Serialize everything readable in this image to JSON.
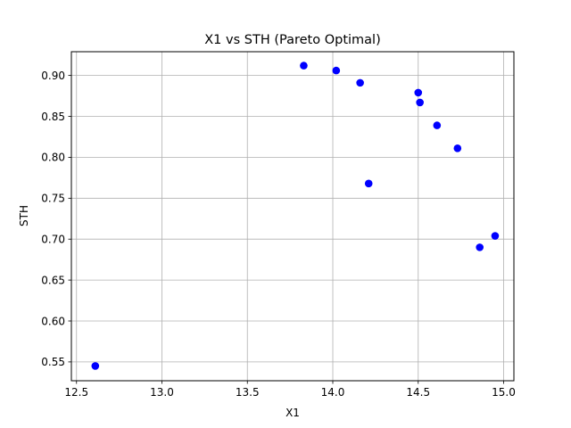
{
  "chart_data": {
    "type": "scatter",
    "title": "X1 vs STH (Pareto Optimal)",
    "xlabel": "X1",
    "ylabel": "STH",
    "xlim": [
      12.47,
      15.06
    ],
    "ylim": [
      0.527,
      0.929
    ],
    "x_ticks": [
      "12.5",
      "13.0",
      "13.5",
      "14.0",
      "14.5",
      "15.0"
    ],
    "y_ticks": [
      "0.55",
      "0.60",
      "0.65",
      "0.70",
      "0.75",
      "0.80",
      "0.85",
      "0.90"
    ],
    "grid": true,
    "marker_color": "#0000ff",
    "points": [
      {
        "x": 12.61,
        "y": 0.545
      },
      {
        "x": 13.83,
        "y": 0.912
      },
      {
        "x": 14.02,
        "y": 0.906
      },
      {
        "x": 14.16,
        "y": 0.891
      },
      {
        "x": 14.21,
        "y": 0.768
      },
      {
        "x": 14.5,
        "y": 0.879
      },
      {
        "x": 14.51,
        "y": 0.867
      },
      {
        "x": 14.61,
        "y": 0.839
      },
      {
        "x": 14.73,
        "y": 0.811
      },
      {
        "x": 14.86,
        "y": 0.69
      },
      {
        "x": 14.95,
        "y": 0.704
      }
    ]
  }
}
